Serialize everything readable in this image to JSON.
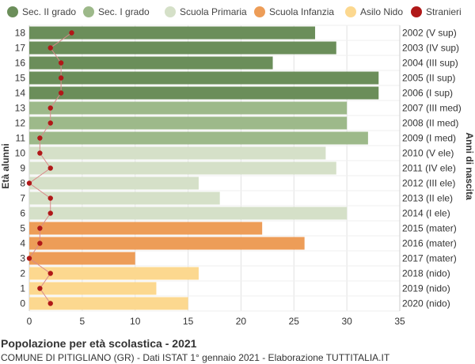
{
  "chart_data": {
    "type": "bar",
    "orientation": "horizontal",
    "title": "Popolazione per età scolastica - 2021",
    "subtitle": "COMUNE DI PITIGLIANO (GR) - Dati ISTAT 1° gennaio 2021 - Elaborazione TUTTITALIA.IT",
    "ylabel_left": "Età alunni",
    "ylabel_right": "Anni di nascita",
    "xlim": [
      0,
      35
    ],
    "x_ticks": [
      0,
      5,
      10,
      15,
      20,
      25,
      30,
      35
    ],
    "grid": true,
    "legend_position": "top",
    "legend": [
      {
        "name": "Sec. II grado",
        "color": "#6b8e5a"
      },
      {
        "name": "Sec. I grado",
        "color": "#9db98a"
      },
      {
        "name": "Scuola Primaria",
        "color": "#d5e0c8"
      },
      {
        "name": "Scuola Infanzia",
        "color": "#ed9d58"
      },
      {
        "name": "Asilo Nido",
        "color": "#fcd88f"
      },
      {
        "name": "Stranieri",
        "color": "#b01818"
      }
    ],
    "rows": [
      {
        "age": "18",
        "year": "2002 (V sup)",
        "value": 27,
        "stranieri": 4,
        "group": 0
      },
      {
        "age": "17",
        "year": "2003 (IV sup)",
        "value": 29,
        "stranieri": 2,
        "group": 0
      },
      {
        "age": "16",
        "year": "2004 (III sup)",
        "value": 23,
        "stranieri": 3,
        "group": 0
      },
      {
        "age": "15",
        "year": "2005 (II sup)",
        "value": 33,
        "stranieri": 3,
        "group": 0
      },
      {
        "age": "14",
        "year": "2006 (I sup)",
        "value": 33,
        "stranieri": 3,
        "group": 0
      },
      {
        "age": "13",
        "year": "2007 (III med)",
        "value": 30,
        "stranieri": 2,
        "group": 1
      },
      {
        "age": "12",
        "year": "2008 (II med)",
        "value": 30,
        "stranieri": 2,
        "group": 1
      },
      {
        "age": "11",
        "year": "2009 (I med)",
        "value": 32,
        "stranieri": 1,
        "group": 1
      },
      {
        "age": "10",
        "year": "2010 (V ele)",
        "value": 28,
        "stranieri": 1,
        "group": 2
      },
      {
        "age": "9",
        "year": "2011 (IV ele)",
        "value": 29,
        "stranieri": 2,
        "group": 2
      },
      {
        "age": "8",
        "year": "2012 (III ele)",
        "value": 16,
        "stranieri": 0,
        "group": 2
      },
      {
        "age": "7",
        "year": "2013 (II ele)",
        "value": 18,
        "stranieri": 2,
        "group": 2
      },
      {
        "age": "6",
        "year": "2014 (I ele)",
        "value": 30,
        "stranieri": 2,
        "group": 2
      },
      {
        "age": "5",
        "year": "2015 (mater)",
        "value": 22,
        "stranieri": 1,
        "group": 3
      },
      {
        "age": "4",
        "year": "2016 (mater)",
        "value": 26,
        "stranieri": 1,
        "group": 3
      },
      {
        "age": "3",
        "year": "2017 (mater)",
        "value": 10,
        "stranieri": 0,
        "group": 3
      },
      {
        "age": "2",
        "year": "2018 (nido)",
        "value": 16,
        "stranieri": 2,
        "group": 4
      },
      {
        "age": "1",
        "year": "2019 (nido)",
        "value": 12,
        "stranieri": 1,
        "group": 4
      },
      {
        "age": "0",
        "year": "2020 (nido)",
        "value": 15,
        "stranieri": 2,
        "group": 4
      }
    ]
  }
}
